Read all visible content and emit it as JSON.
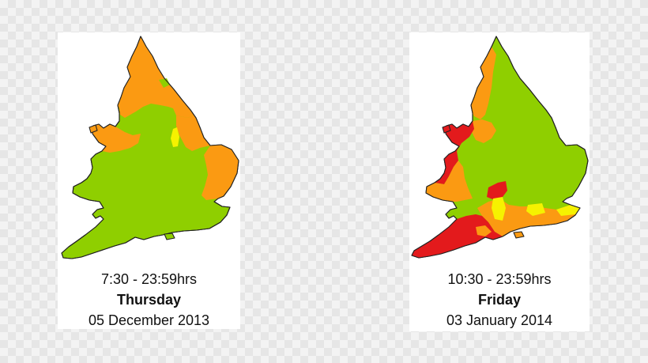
{
  "colors": {
    "green": "#8fcf00",
    "orange": "#fb9a12",
    "red": "#e31a1c",
    "yellow": "#f6f200",
    "panel_bg": "#ffffff"
  },
  "maps": [
    {
      "time": "7:30 - 23:59hrs",
      "day": "Thursday",
      "date": "05 December 2013"
    },
    {
      "time": "10:30 - 23:59hrs",
      "day": "Friday",
      "date": "03 January 2014"
    }
  ]
}
